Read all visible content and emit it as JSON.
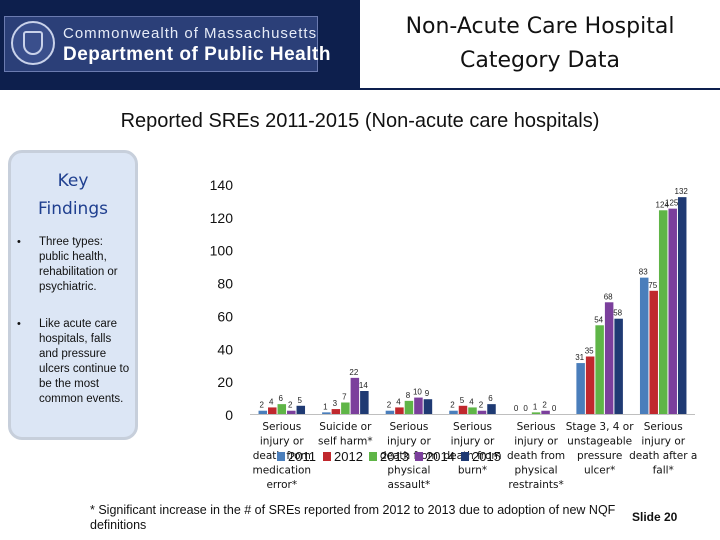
{
  "header": {
    "org_line1": "Commonwealth of Massachusetts",
    "org_line2": "Department of Public Health",
    "title_line1": "Non-Acute Care Hospital",
    "title_line2": "Category Data"
  },
  "key_findings": {
    "title_line1": "Key",
    "title_line2": "Findings",
    "bullets": [
      "Three types: public health, rehabilitation or psychiatric.",
      "Like acute care hospitals, falls and pressure ulcers continue to be the most common events."
    ]
  },
  "footnote": "* Significant increase in the # of SREs reported from 2012 to 2013 due to adoption of new NQF definitions",
  "slide_number": "Slide 20",
  "chart_data": {
    "type": "bar",
    "title": "Reported SREs 2011-2015 (Non-acute care hospitals)",
    "ylim": [
      0,
      140
    ],
    "yticks": [
      0,
      20,
      40,
      60,
      80,
      100,
      120,
      140
    ],
    "grid": false,
    "legend_position": "bottom",
    "categories": [
      [
        "Serious",
        "injury or",
        "death from",
        "medication",
        "error*"
      ],
      [
        "Suicide or",
        "self harm*"
      ],
      [
        "Serious",
        "injury or",
        "death from",
        "physical",
        "assault*"
      ],
      [
        "Serious",
        "injury or",
        "death from",
        "burn*"
      ],
      [
        "Serious",
        "injury or",
        "death from",
        "physical",
        "restraints*"
      ],
      [
        "Stage 3, 4 or",
        "unstageable",
        "pressure",
        "ulcer*"
      ],
      [
        "Serious",
        "injury or",
        "death after a",
        "fall*"
      ]
    ],
    "series": [
      {
        "name": "2011",
        "color": "#4a7ebb",
        "values": [
          2,
          1,
          2,
          2,
          0,
          31,
          83
        ]
      },
      {
        "name": "2012",
        "color": "#c0282d",
        "values": [
          4,
          3,
          4,
          5,
          0,
          35,
          75
        ]
      },
      {
        "name": "2013",
        "color": "#5fb547",
        "values": [
          6,
          7,
          8,
          4,
          1,
          54,
          124
        ]
      },
      {
        "name": "2014",
        "color": "#7b3f9c",
        "values": [
          2,
          22,
          10,
          2,
          2,
          68,
          125
        ]
      },
      {
        "name": "2015",
        "color": "#1f3a73",
        "values": [
          5,
          14,
          9,
          6,
          0,
          58,
          132
        ]
      }
    ]
  }
}
